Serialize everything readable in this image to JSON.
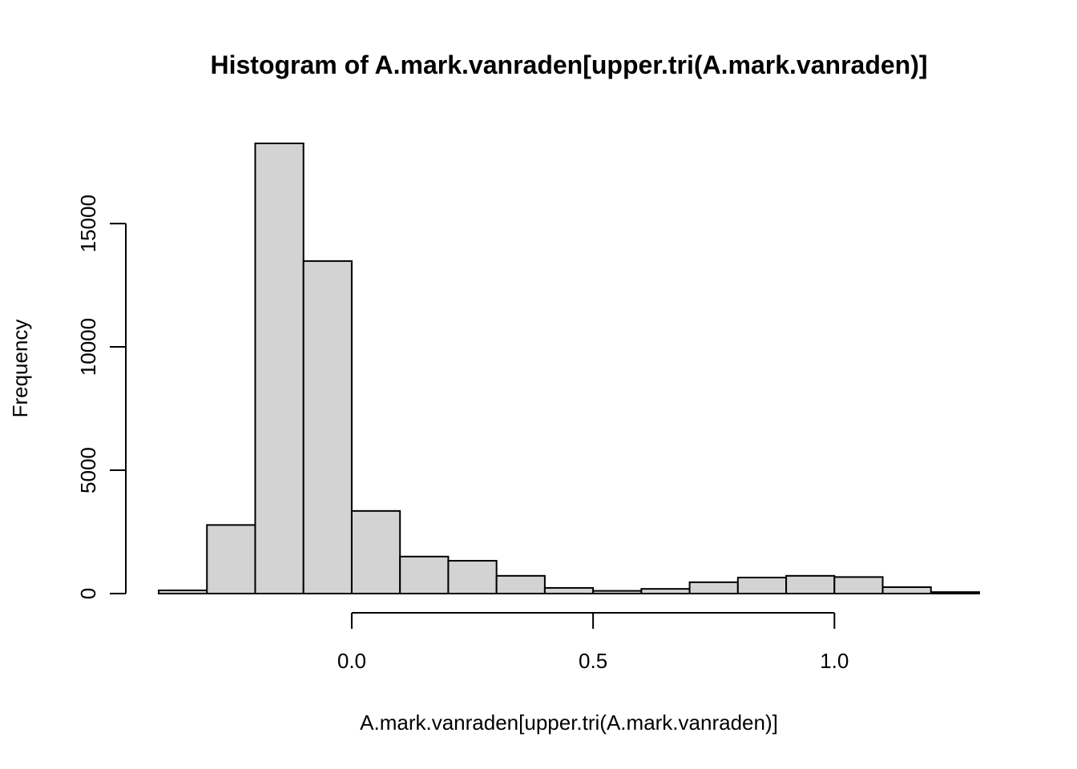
{
  "chart_data": {
    "type": "bar",
    "title": "Histogram of A.mark.vanraden[upper.tri(A.mark.vanraden)]",
    "xlabel": "A.mark.vanraden[upper.tri(A.mark.vanraden)]",
    "ylabel": "Frequency",
    "bin_edges": [
      -0.4,
      -0.3,
      -0.2,
      -0.1,
      0.0,
      0.1,
      0.2,
      0.3,
      0.4,
      0.5,
      0.6,
      0.7,
      0.8,
      0.9,
      1.0,
      1.1,
      1.2,
      1.3
    ],
    "values": [
      130,
      2780,
      18250,
      13480,
      3350,
      1500,
      1330,
      720,
      230,
      110,
      190,
      460,
      650,
      720,
      670,
      260,
      60
    ],
    "xlim": [
      -0.4,
      1.3
    ],
    "ylim": [
      0,
      18250
    ],
    "x_ticks": [
      0.0,
      0.5,
      1.0
    ],
    "x_tick_labels": [
      "0.0",
      "0.5",
      "1.0"
    ],
    "y_ticks": [
      0,
      5000,
      10000,
      15000
    ],
    "y_tick_labels": [
      "0",
      "5000",
      "10000",
      "15000"
    ],
    "grid": false,
    "bar_fill": "#d3d3d3",
    "bar_stroke": "#000000"
  }
}
